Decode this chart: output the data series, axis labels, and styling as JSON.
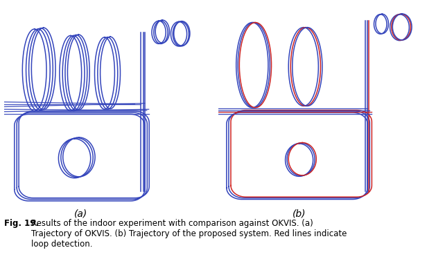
{
  "caption_label": "Fig. 19.",
  "caption_text": "Results of the indoor experiment with comparison against OKVIS. (a)\nTrajectory of OKVIS. (b) Trajectory of the proposed system. Red lines indicate\nloop detection.",
  "label_a": "(a)",
  "label_b": "(b)",
  "blue": "#3344bb",
  "red": "#cc2222",
  "bg": "#ffffff",
  "lw": 1.1
}
